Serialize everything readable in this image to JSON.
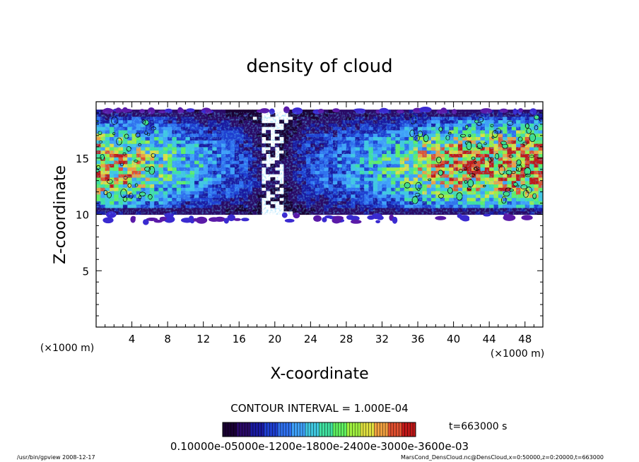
{
  "chart_data": {
    "type": "heatmap",
    "title": "density of cloud",
    "xlabel": "X-coordinate",
    "ylabel": "Z-coordinate",
    "x_unit": "(×1000 m)",
    "y_unit": "(×1000 m)",
    "xlim": [
      0,
      50
    ],
    "ylim": [
      0,
      20
    ],
    "x_ticks": [
      4,
      8,
      12,
      16,
      20,
      24,
      28,
      32,
      36,
      40,
      44,
      48
    ],
    "y_ticks": [
      5,
      10,
      15
    ],
    "cloud_layer": {
      "z_bottom": 10,
      "z_top": 19.1
    },
    "cloud_profile": [
      {
        "x": 0,
        "density": 0.00045
      },
      {
        "x": 4,
        "density": 0.0004
      },
      {
        "x": 8,
        "density": 0.0003
      },
      {
        "x": 12,
        "density": 0.00022
      },
      {
        "x": 16,
        "density": 0.00015
      },
      {
        "x": 19,
        "density": 5e-05
      },
      {
        "x": 21,
        "density": 4e-05
      },
      {
        "x": 24,
        "density": 0.00014
      },
      {
        "x": 28,
        "density": 0.0002
      },
      {
        "x": 32,
        "density": 0.00026
      },
      {
        "x": 36,
        "density": 0.00036
      },
      {
        "x": 40,
        "density": 0.00044
      },
      {
        "x": 44,
        "density": 0.00047
      },
      {
        "x": 48,
        "density": 0.00048
      },
      {
        "x": 50,
        "density": 0.00048
      }
    ],
    "contour_interval_text": "CONTOUR INTERVAL = 1.000E-04",
    "time_text": "t=663000 s",
    "colorbar": {
      "min": 0,
      "max": 0.0007,
      "colors": [
        "#1a0033",
        "#2a0a66",
        "#1a1aa0",
        "#1f3fd0",
        "#2f70ee",
        "#3fa0f8",
        "#40c8e0",
        "#40e0a0",
        "#60f060",
        "#a0f040",
        "#e0e040",
        "#f0a040",
        "#e05030",
        "#c01818"
      ],
      "labels_text": "0.10000e-05000e-1200e-1800e-2400e-3000e-3600e-03"
    }
  },
  "footer": {
    "left": "/usr/bin/gpview   2008-12-17",
    "right": "MarsCond_DensCloud.nc@DensCloud,x=0:50000,z=0:20000,t=663000"
  }
}
